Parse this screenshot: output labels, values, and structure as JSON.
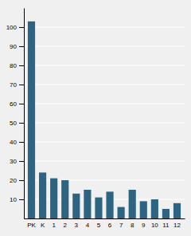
{
  "chart_data": {
    "type": "bar",
    "categories": [
      "PK",
      "K",
      "1",
      "2",
      "3",
      "4",
      "5",
      "6",
      "7",
      "8",
      "9",
      "10",
      "11",
      "12"
    ],
    "values": [
      103,
      24,
      21,
      20,
      13,
      15,
      11,
      14,
      6,
      15,
      9,
      10,
      5,
      8
    ],
    "color": "#2d6482",
    "ylim": [
      0,
      110
    ],
    "yticks": [
      10,
      20,
      30,
      40,
      50,
      60,
      70,
      80,
      90,
      100
    ],
    "grid": true
  }
}
